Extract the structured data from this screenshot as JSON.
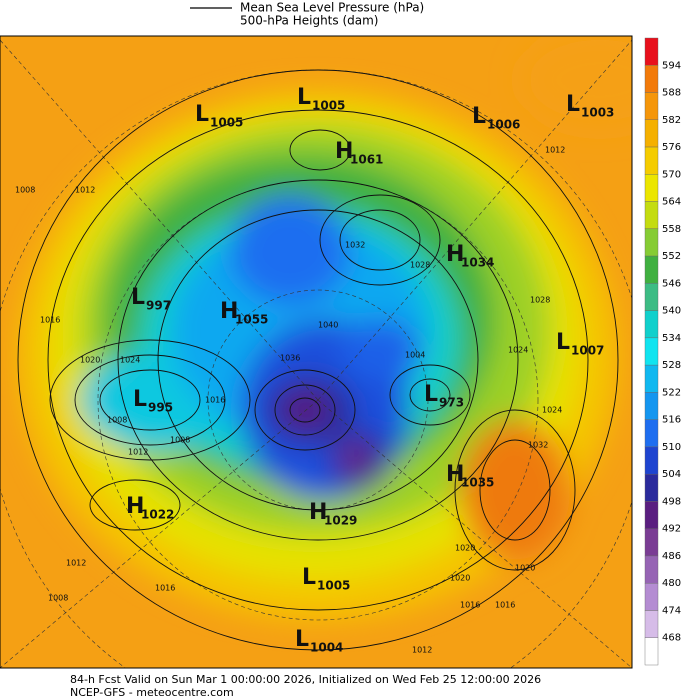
{
  "header": {
    "legend": [
      "Mean Sea Level Pressure (hPa)",
      "500-hPa Heights (dam)"
    ]
  },
  "colorbar": {
    "labels": [
      594,
      588,
      582,
      576,
      570,
      564,
      558,
      552,
      546,
      540,
      534,
      528,
      522,
      516,
      510,
      504,
      498,
      492,
      486,
      480,
      474,
      468
    ],
    "colors": [
      "#e8101c",
      "#f27a0a",
      "#f5960a",
      "#f5b000",
      "#f5cc00",
      "#ece600",
      "#c4dc10",
      "#86cc34",
      "#40b040",
      "#3cbc84",
      "#10d0cc",
      "#10e4f0",
      "#10b8f0",
      "#1496f0",
      "#1e6ef0",
      "#1e44d0",
      "#2a2a9c",
      "#5a1e80",
      "#7a3c94",
      "#9664b4",
      "#b48cd2",
      "#d6bce8",
      "#ffffff"
    ]
  },
  "centers": [
    {
      "type": "L",
      "value": "1005"
    },
    {
      "type": "L",
      "value": "1005"
    },
    {
      "type": "L",
      "value": "1006"
    },
    {
      "type": "L",
      "value": "1003"
    },
    {
      "type": "H",
      "value": "1061"
    },
    {
      "type": "H",
      "value": "1034"
    },
    {
      "type": "L",
      "value": "997"
    },
    {
      "type": "H",
      "value": "1055"
    },
    {
      "type": "L",
      "value": "1007"
    },
    {
      "type": "L",
      "value": "995"
    },
    {
      "type": "L",
      "value": "973"
    },
    {
      "type": "H",
      "value": "1035"
    },
    {
      "type": "H",
      "value": "1022"
    },
    {
      "type": "H",
      "value": "1029"
    },
    {
      "type": "L",
      "value": "1005"
    },
    {
      "type": "L",
      "value": "1004"
    }
  ],
  "contour_labels": [
    "1008",
    "1012",
    "1016",
    "1020",
    "1024",
    "1008",
    "1012",
    "1012",
    "1032",
    "1028",
    "1028",
    "1024",
    "1032",
    "1024",
    "1020",
    "1016",
    "1016",
    "1012",
    "1016",
    "1008",
    "1012",
    "1020",
    "1004",
    "1036",
    "1040",
    "1016",
    "1008",
    "1020"
  ],
  "footer": [
    "84-h Fcst Valid on Sun Mar  1 00:00:00 2026, Initialized on Wed Feb 25 12:00:00 2026",
    "NCEP-GFS  -  meteocentre.com"
  ]
}
